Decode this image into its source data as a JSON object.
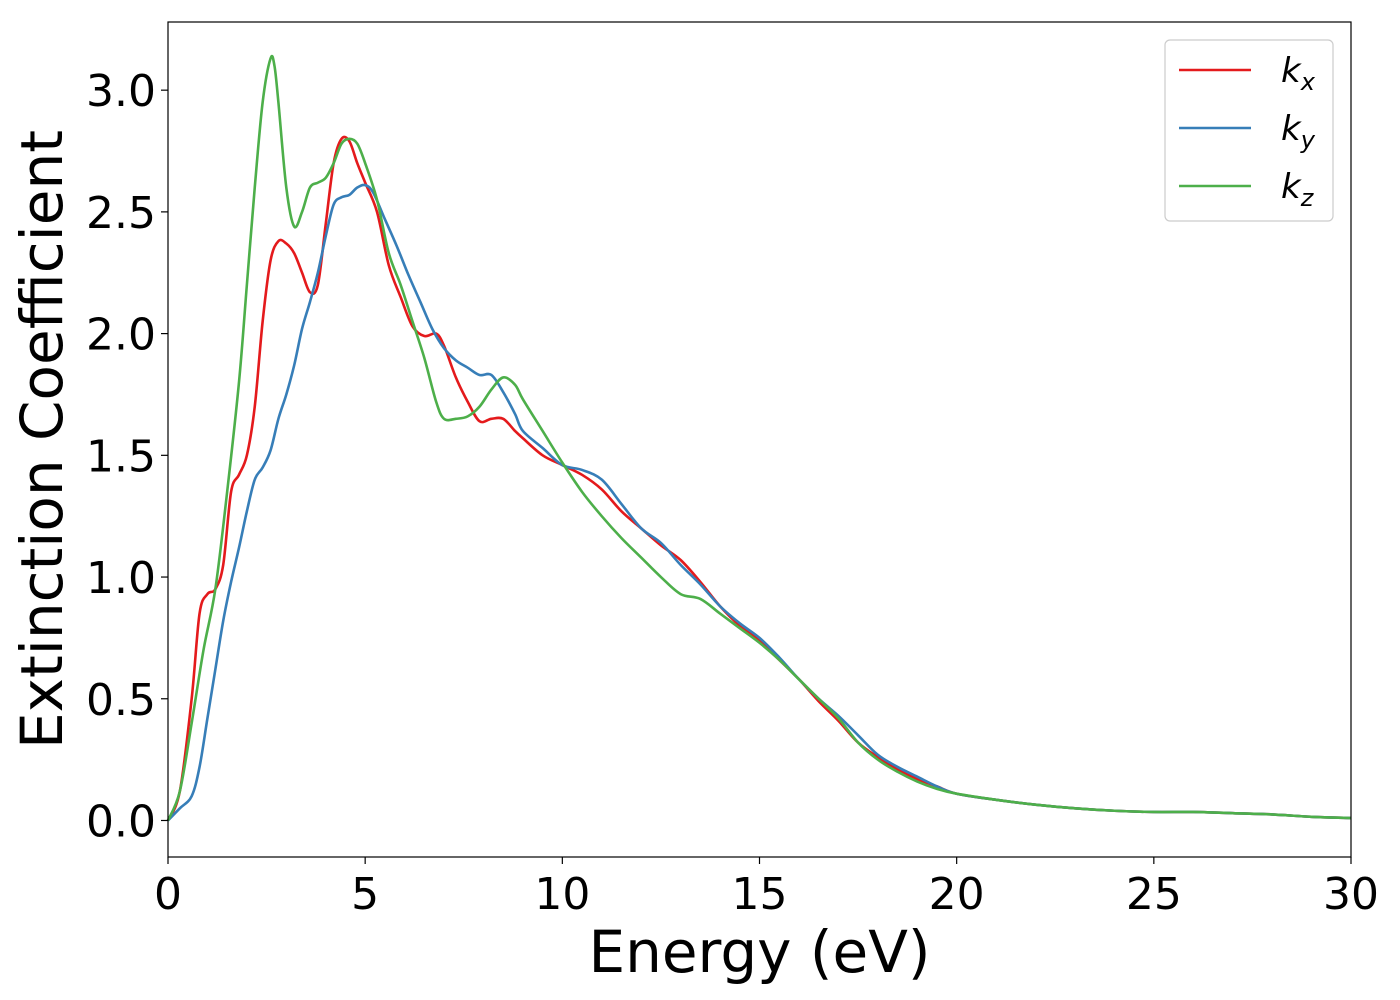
{
  "chart_data": {
    "type": "line",
    "xlabel": "Energy (eV)",
    "ylabel": "Extinction Coefficient",
    "xlim": [
      0,
      30
    ],
    "ylim": [
      -0.15,
      3.28
    ],
    "xticks": [
      0,
      5,
      10,
      15,
      20,
      25,
      30
    ],
    "xtick_labels": [
      "0",
      "5",
      "10",
      "15",
      "20",
      "25",
      "30"
    ],
    "yticks": [
      0.0,
      0.5,
      1.0,
      1.5,
      2.0,
      2.5,
      3.0
    ],
    "ytick_labels": [
      "0.0",
      "0.5",
      "1.0",
      "1.5",
      "2.0",
      "2.5",
      "3.0"
    ],
    "grid": false,
    "legend_position": "top-right",
    "series": [
      {
        "name": "k",
        "subscript": "x",
        "color": "#e41a1c",
        "x": [
          0,
          0.3,
          0.6,
          0.8,
          1.0,
          1.2,
          1.4,
          1.6,
          1.8,
          2.0,
          2.2,
          2.4,
          2.6,
          2.8,
          3.0,
          3.2,
          3.4,
          3.6,
          3.8,
          4.0,
          4.2,
          4.4,
          4.6,
          4.8,
          5.0,
          5.3,
          5.6,
          5.9,
          6.2,
          6.5,
          6.8,
          7.0,
          7.3,
          7.6,
          7.9,
          8.2,
          8.5,
          8.8,
          9.0,
          9.5,
          10,
          10.5,
          11,
          11.5,
          12,
          12.5,
          13,
          13.5,
          14,
          14.5,
          15,
          15.5,
          16,
          16.5,
          17,
          17.5,
          18,
          18.5,
          19,
          19.5,
          20,
          21,
          22,
          23,
          24,
          25,
          26,
          27,
          28,
          29,
          30
        ],
        "y": [
          0.0,
          0.12,
          0.5,
          0.85,
          0.93,
          0.95,
          1.05,
          1.35,
          1.42,
          1.5,
          1.7,
          2.05,
          2.3,
          2.38,
          2.37,
          2.33,
          2.25,
          2.17,
          2.2,
          2.45,
          2.7,
          2.8,
          2.79,
          2.7,
          2.62,
          2.5,
          2.28,
          2.15,
          2.03,
          1.99,
          2.0,
          1.95,
          1.82,
          1.72,
          1.64,
          1.65,
          1.65,
          1.6,
          1.57,
          1.5,
          1.46,
          1.42,
          1.36,
          1.27,
          1.2,
          1.13,
          1.07,
          0.98,
          0.88,
          0.8,
          0.74,
          0.66,
          0.58,
          0.49,
          0.41,
          0.32,
          0.26,
          0.21,
          0.17,
          0.14,
          0.11,
          0.085,
          0.065,
          0.05,
          0.04,
          0.035,
          0.035,
          0.03,
          0.025,
          0.015,
          0.01
        ]
      },
      {
        "name": "k",
        "subscript": "y",
        "color": "#377eb8",
        "x": [
          0,
          0.3,
          0.6,
          0.8,
          1.0,
          1.2,
          1.4,
          1.6,
          1.8,
          2.0,
          2.2,
          2.4,
          2.6,
          2.8,
          3.0,
          3.2,
          3.4,
          3.6,
          3.8,
          4.0,
          4.2,
          4.4,
          4.6,
          4.8,
          5.0,
          5.2,
          5.5,
          5.8,
          6.1,
          6.4,
          6.7,
          7.0,
          7.3,
          7.6,
          7.9,
          8.2,
          8.5,
          8.8,
          9.0,
          9.5,
          10,
          10.5,
          11,
          11.5,
          12,
          12.5,
          13,
          13.5,
          14,
          14.5,
          15,
          15.5,
          16,
          16.5,
          17,
          17.5,
          18,
          18.5,
          19,
          19.5,
          20,
          21,
          22,
          23,
          24,
          25,
          26,
          27,
          28,
          29,
          30
        ],
        "y": [
          0.0,
          0.05,
          0.1,
          0.22,
          0.42,
          0.62,
          0.82,
          0.98,
          1.12,
          1.27,
          1.4,
          1.45,
          1.52,
          1.65,
          1.75,
          1.87,
          2.02,
          2.13,
          2.25,
          2.4,
          2.53,
          2.56,
          2.57,
          2.6,
          2.61,
          2.58,
          2.47,
          2.36,
          2.24,
          2.13,
          2.02,
          1.94,
          1.89,
          1.86,
          1.83,
          1.83,
          1.76,
          1.67,
          1.6,
          1.53,
          1.46,
          1.44,
          1.4,
          1.3,
          1.2,
          1.14,
          1.05,
          0.97,
          0.88,
          0.81,
          0.75,
          0.67,
          0.58,
          0.5,
          0.43,
          0.35,
          0.27,
          0.22,
          0.18,
          0.14,
          0.11,
          0.085,
          0.065,
          0.05,
          0.04,
          0.035,
          0.035,
          0.03,
          0.025,
          0.015,
          0.01
        ]
      },
      {
        "name": "k",
        "subscript": "z",
        "color": "#4daf4a",
        "x": [
          0,
          0.3,
          0.6,
          0.9,
          1.2,
          1.5,
          1.8,
          2.0,
          2.2,
          2.4,
          2.6,
          2.7,
          2.8,
          3.0,
          3.2,
          3.4,
          3.6,
          3.8,
          4.0,
          4.2,
          4.4,
          4.6,
          4.8,
          5.0,
          5.3,
          5.6,
          5.9,
          6.2,
          6.5,
          6.8,
          7.0,
          7.3,
          7.6,
          7.9,
          8.2,
          8.5,
          8.8,
          9.0,
          9.5,
          10,
          10.5,
          11,
          11.5,
          12,
          12.5,
          13,
          13.5,
          14,
          14.5,
          15,
          15.5,
          16,
          16.5,
          17,
          17.5,
          18,
          18.5,
          19,
          19.5,
          20,
          21,
          22,
          23,
          24,
          25,
          26,
          27,
          28,
          29,
          30
        ],
        "y": [
          0.0,
          0.12,
          0.4,
          0.7,
          0.95,
          1.35,
          1.8,
          2.2,
          2.6,
          2.95,
          3.13,
          3.1,
          2.95,
          2.6,
          2.44,
          2.5,
          2.6,
          2.62,
          2.64,
          2.7,
          2.78,
          2.8,
          2.78,
          2.7,
          2.55,
          2.33,
          2.2,
          2.05,
          1.9,
          1.72,
          1.65,
          1.65,
          1.66,
          1.7,
          1.77,
          1.82,
          1.79,
          1.73,
          1.6,
          1.47,
          1.35,
          1.25,
          1.16,
          1.08,
          1.0,
          0.93,
          0.91,
          0.85,
          0.79,
          0.73,
          0.66,
          0.58,
          0.5,
          0.42,
          0.32,
          0.25,
          0.2,
          0.16,
          0.13,
          0.11,
          0.085,
          0.065,
          0.05,
          0.04,
          0.035,
          0.035,
          0.03,
          0.025,
          0.015,
          0.01
        ]
      }
    ]
  }
}
